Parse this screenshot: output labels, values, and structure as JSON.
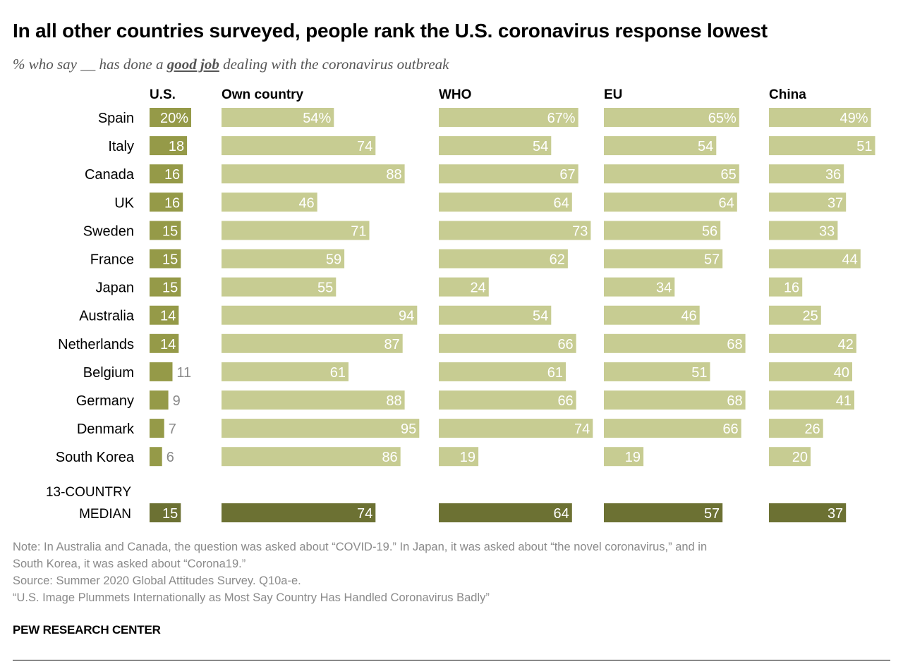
{
  "header": {
    "title": "In all other countries surveyed, people rank the U.S. coronavirus response lowest",
    "subtitle_before": "% who say __ has done a ",
    "subtitle_emphasis": "good job",
    "subtitle_after": " dealing with the coronavirus outbreak"
  },
  "chart_data": {
    "type": "bar",
    "orientation": "horizontal",
    "layout": "small-multiples",
    "categories": [
      "Spain",
      "Italy",
      "Canada",
      "UK",
      "Sweden",
      "France",
      "Japan",
      "Australia",
      "Netherlands",
      "Belgium",
      "Germany",
      "Denmark",
      "South Korea"
    ],
    "series": [
      {
        "name": "U.S.",
        "values": [
          20,
          18,
          16,
          16,
          15,
          15,
          15,
          14,
          14,
          11,
          9,
          7,
          6
        ],
        "median": 15
      },
      {
        "name": "Own country",
        "values": [
          54,
          74,
          88,
          46,
          71,
          59,
          55,
          94,
          87,
          61,
          88,
          95,
          86
        ],
        "median": 74
      },
      {
        "name": "WHO",
        "values": [
          67,
          54,
          67,
          64,
          73,
          62,
          24,
          54,
          66,
          61,
          66,
          74,
          19
        ],
        "median": 64
      },
      {
        "name": "EU",
        "values": [
          65,
          54,
          65,
          64,
          56,
          57,
          34,
          46,
          68,
          51,
          68,
          66,
          19
        ],
        "median": 57
      },
      {
        "name": "China",
        "values": [
          49,
          51,
          36,
          37,
          33,
          44,
          16,
          25,
          42,
          40,
          41,
          26,
          20
        ],
        "median": 37
      }
    ],
    "median_label_line1": "13-COUNTRY",
    "median_label_line2": "MEDIAN",
    "percent_suffix": "%",
    "colors": {
      "us_bar": "#959a48",
      "bar": "#c7cc92",
      "median_bar": "#6c7133",
      "outside_label": "#8a8a8a",
      "inside_label": "#ffffff"
    }
  },
  "footer": {
    "note_line1": "Note: In Australia and Canada, the question was asked about “COVID-19.” In Japan, it was asked about “the novel coronavirus,” and in",
    "note_line2": "South Korea, it was asked about “Corona19.”",
    "source": "Source: Summer 2020 Global Attitudes Survey. Q10a-e.",
    "report": "“U.S. Image Plummets Internationally as Most Say Country Has Handled Coronavirus Badly”",
    "brand": "PEW RESEARCH CENTER"
  }
}
